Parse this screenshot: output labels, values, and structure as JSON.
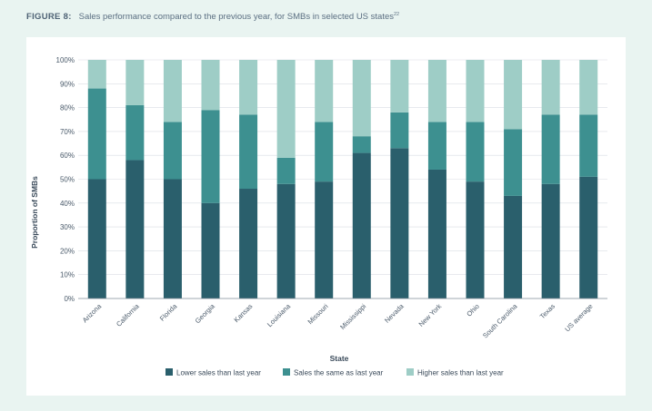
{
  "figure": {
    "label": "FIGURE 8:",
    "title": "Sales performance compared to the previous year, for SMBs in selected US states",
    "footnote": "22"
  },
  "chart_data": {
    "type": "bar",
    "stacked": true,
    "percent": true,
    "xlabel": "State",
    "ylabel": "Proportion of SMBs",
    "ylim": [
      0,
      100
    ],
    "yticks": [
      "0%",
      "10%",
      "20%",
      "30%",
      "40%",
      "50%",
      "60%",
      "70%",
      "80%",
      "90%",
      "100%"
    ],
    "categories": [
      "Arizona",
      "California",
      "Florida",
      "Georgia",
      "Kansas",
      "Louisiana",
      "Missouri",
      "Mississippi",
      "Nevada",
      "New York",
      "Ohio",
      "South Carolina",
      "Texas",
      "US average"
    ],
    "series": [
      {
        "name": "Lower sales than last year",
        "color": "#2a5f6c",
        "values": [
          50,
          58,
          50,
          40,
          46,
          48,
          49,
          61,
          63,
          54,
          49,
          43,
          48,
          51
        ]
      },
      {
        "name": "Sales the same as last year",
        "color": "#3d9090",
        "values": [
          38,
          23,
          24,
          39,
          31,
          11,
          25,
          7,
          15,
          20,
          25,
          28,
          29,
          26
        ]
      },
      {
        "name": "Higher sales than last year",
        "color": "#9ecdc6",
        "values": [
          12,
          19,
          26,
          21,
          23,
          41,
          26,
          32,
          22,
          26,
          26,
          29,
          23,
          23
        ]
      }
    ],
    "legend_position": "bottom"
  }
}
